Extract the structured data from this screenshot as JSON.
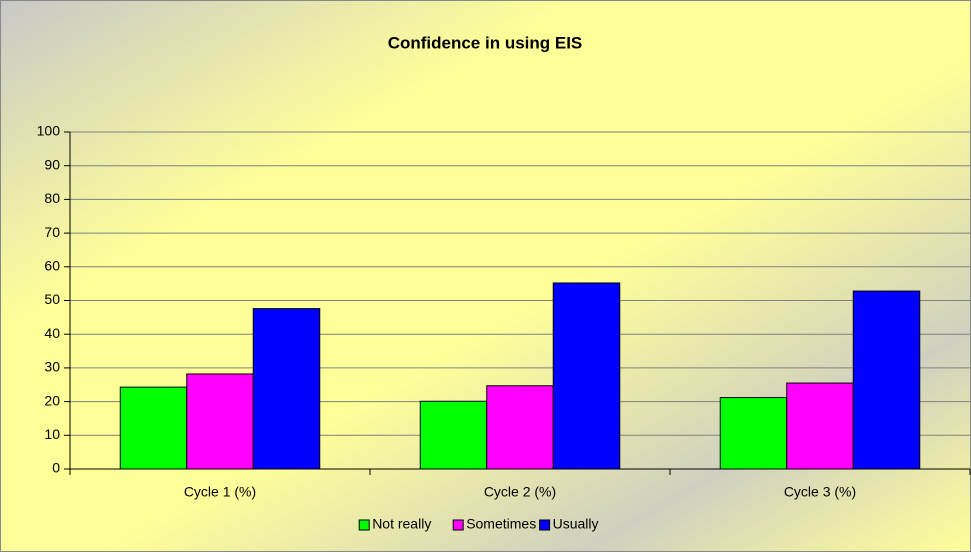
{
  "chart_data": {
    "type": "bar",
    "title": "Confidence in using EIS",
    "categories": [
      "Cycle 1 (%)",
      "Cycle 2 (%)",
      "Cycle 3 (%)"
    ],
    "series": [
      {
        "name": "Not really",
        "color": "#00ff00",
        "values": [
          24.3,
          20.1,
          21.2
        ]
      },
      {
        "name": "Sometimes",
        "color": "#ff00ff",
        "values": [
          28.2,
          24.7,
          25.5
        ]
      },
      {
        "name": "Usually",
        "color": "#0000ff",
        "values": [
          47.6,
          55.2,
          52.8
        ]
      }
    ],
    "ylim": [
      0,
      100
    ],
    "yticks": [
      0,
      10,
      20,
      30,
      40,
      50,
      60,
      70,
      80,
      90,
      100
    ],
    "grid": true,
    "legend": "bottom"
  }
}
